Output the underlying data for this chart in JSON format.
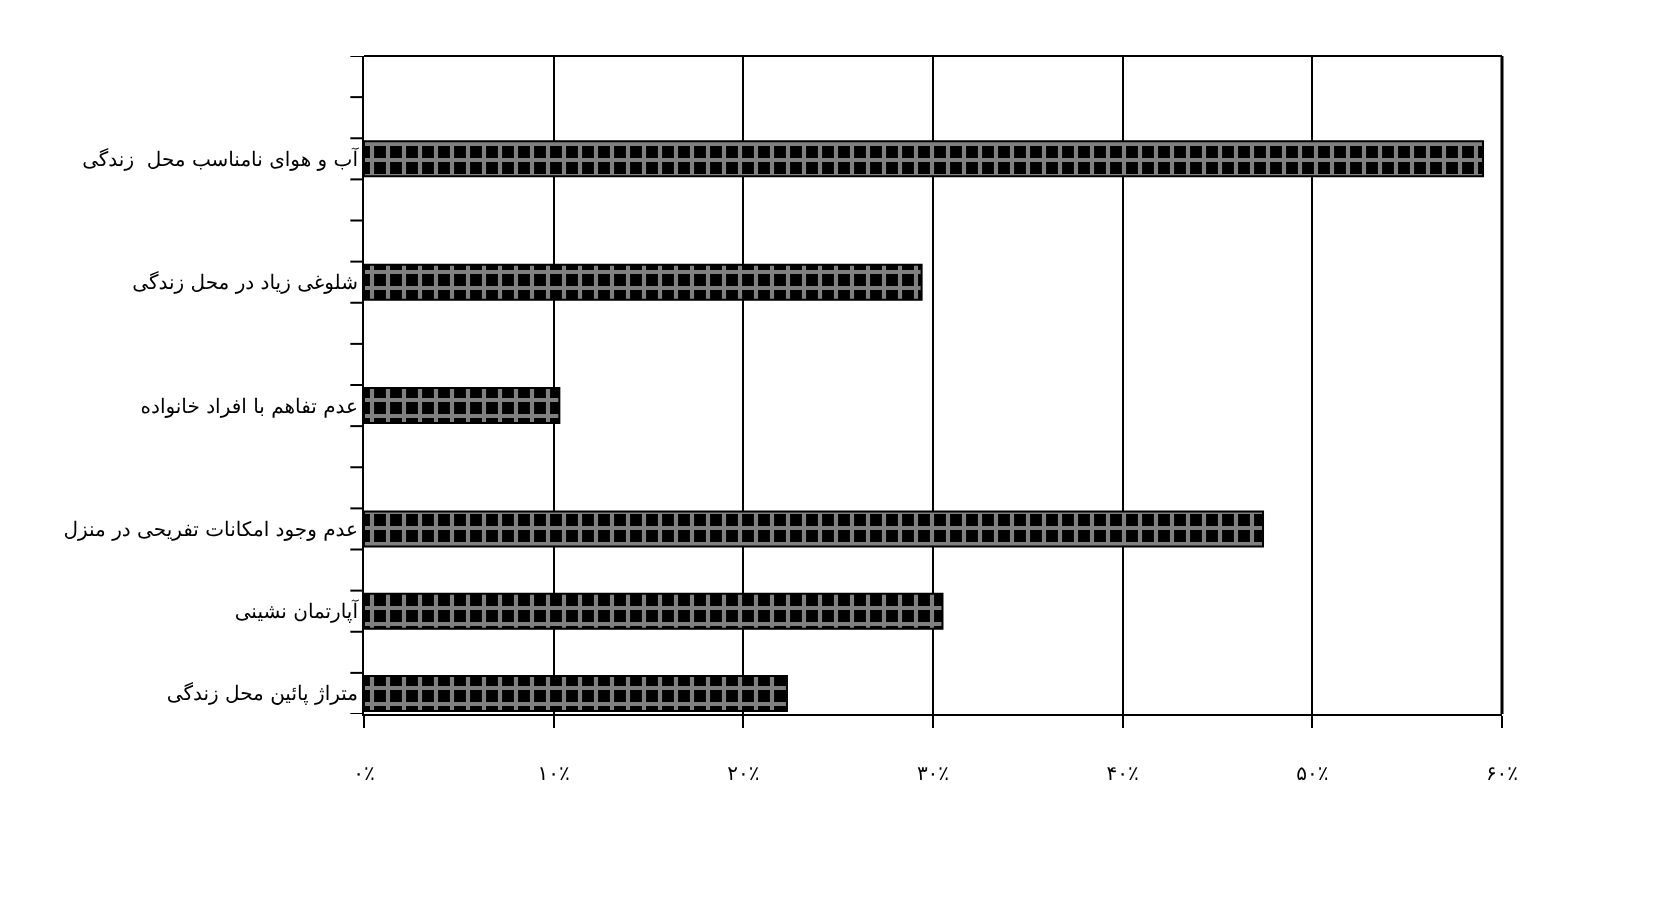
{
  "chart_data": {
    "type": "bar",
    "orientation": "horizontal",
    "categories": [
      null,
      null,
      "آب و هوای نامناسب محل  زندگی",
      null,
      null,
      "شلوغی زیاد در محل زندگی",
      null,
      null,
      "عدم تفاهم با افراد خانواده",
      null,
      null,
      "عدم وجود امکانات تفریحی در منزل",
      null,
      "آپارتمان نشینی",
      null,
      "متراژ پائین محل زندگی"
    ],
    "values": [
      null,
      null,
      59,
      null,
      null,
      29.4,
      null,
      null,
      10.3,
      null,
      null,
      47.4,
      null,
      30.5,
      null,
      22.3
    ],
    "color": "#000000",
    "xlim": [
      0,
      60
    ],
    "xticks": [
      {
        "value": 0,
        "label": "۰٪"
      },
      {
        "value": 10,
        "label": "۱۰٪"
      },
      {
        "value": 20,
        "label": "۲۰٪"
      },
      {
        "value": 30,
        "label": "۳۰٪"
      },
      {
        "value": 40,
        "label": "۴۰٪"
      },
      {
        "value": 50,
        "label": "۵۰٪"
      },
      {
        "value": 60,
        "label": "۶۰٪"
      }
    ],
    "grid": "x",
    "legend": false
  }
}
